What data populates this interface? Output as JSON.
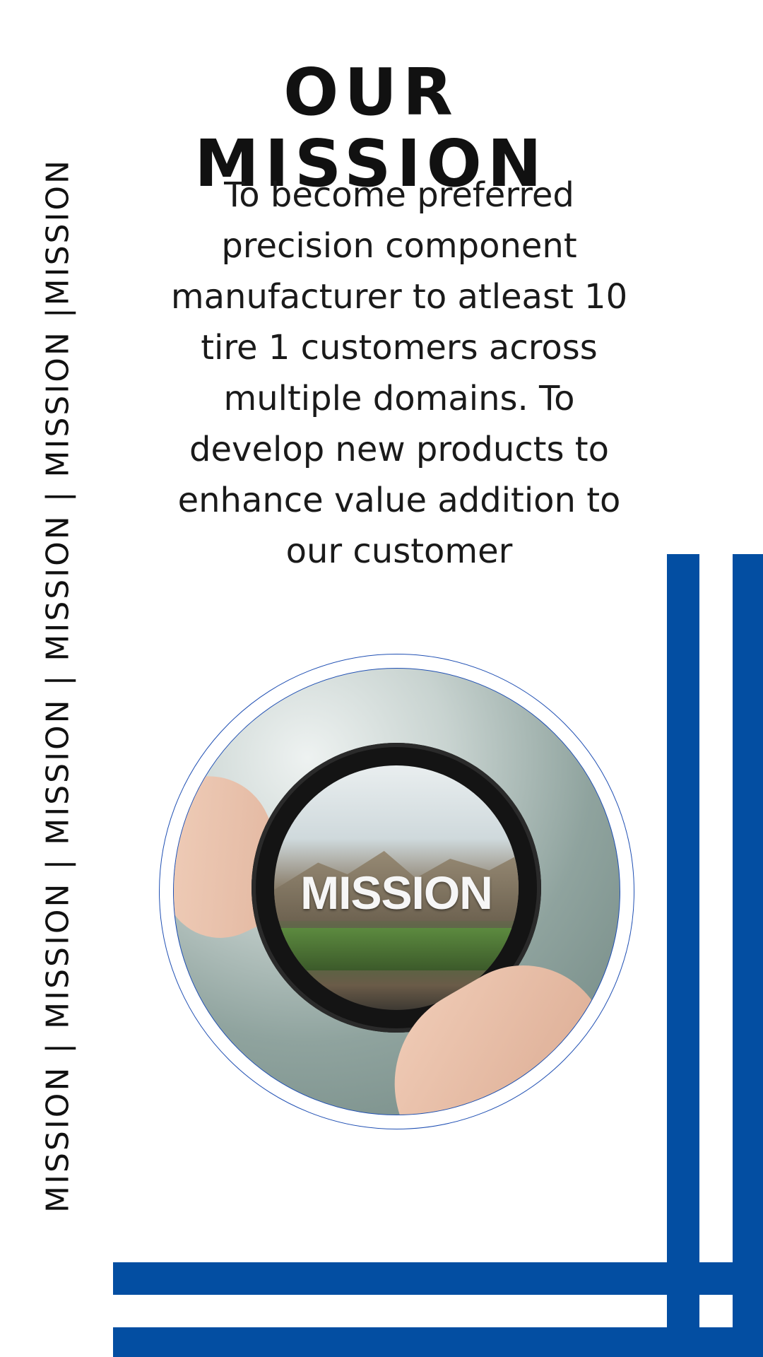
{
  "side_banner": {
    "text": "MISSION | MISSION | MISSION | MISSION | MISSION |MISSION"
  },
  "header": {
    "title": "OUR MISSION"
  },
  "mission": {
    "statement": "To become preferred precision component manufacturer to atleast 10 tire 1 customers across multiple domains. To develop new products to enhance value addition to our customer"
  },
  "image": {
    "lens_word": "MISSION",
    "description_icon": "magnifying-lens-image"
  },
  "colors": {
    "accent_blue": "#034ea2",
    "circle_border": "#1f4fb3",
    "text": "#111111"
  }
}
